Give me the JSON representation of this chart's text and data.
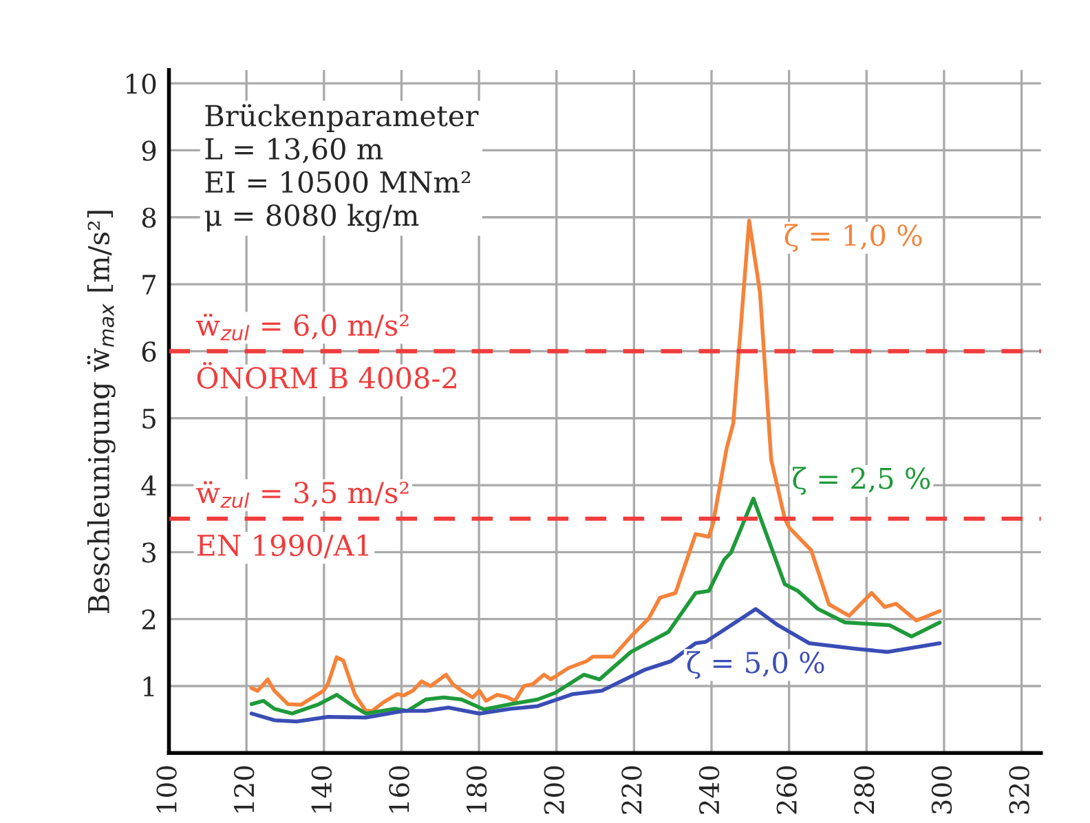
{
  "chart_data": {
    "type": "line",
    "ylabel": "Beschleunigung ẅ$_{max}$ [m/s²]",
    "xlim": [
      100,
      325
    ],
    "ylim": [
      0,
      10.2
    ],
    "xticks": [
      100,
      120,
      140,
      160,
      180,
      200,
      220,
      240,
      260,
      280,
      300,
      320
    ],
    "yticks": [
      1,
      2,
      3,
      4,
      5,
      6,
      7,
      8,
      9,
      10
    ],
    "grid": true,
    "line_style": "solid",
    "annotations": [
      "Brückenparameter\nL = 13,60 m\nEI = 10500 MNm²\nμ = 8080 kg/m"
    ],
    "ref_lines": [
      {
        "axis": "y",
        "value": 6.0,
        "label": "ẅ$_{zul}$ = 6,0 m/s²\nÖNORM B 4008-2",
        "color": "#f03c3c",
        "line_style": "dashed"
      },
      {
        "axis": "y",
        "value": 3.5,
        "label": "ẅ$_{zul}$ = 3,5 m/s²\nEN 1990/A1",
        "color": "#f03c3c",
        "line_style": "dashed"
      }
    ],
    "series": [
      {
        "name": "ζ = 1,0 %",
        "color": "#f5833a",
        "x": [
          121.3,
          122.9,
          125.5,
          127.2,
          130.7,
          134,
          139.9,
          141,
          143.3,
          145,
          148,
          150.8,
          152.5,
          155.4,
          158.9,
          160.6,
          162.9,
          165.2,
          167.5,
          171.5,
          173.2,
          175.5,
          178.4,
          180.1,
          181.8,
          184.7,
          187,
          189.3,
          191.6,
          193.9,
          196.8,
          198.5,
          203.1,
          207.7,
          209.4,
          214.6,
          219.2,
          223.8,
          226.7,
          230.7,
          235.9,
          239.3,
          240.4,
          243.9,
          245.6,
          249.7,
          252.5,
          255.4,
          258.9,
          260,
          264,
          265.7,
          270.3,
          275.5,
          281.3,
          284.7,
          287.6,
          292.8,
          295.1,
          298.9
        ],
        "values": [
          0.97,
          0.93,
          1.1,
          0.93,
          0.73,
          0.72,
          0.93,
          1.03,
          1.43,
          1.38,
          0.87,
          0.63,
          0.63,
          0.76,
          0.88,
          0.86,
          0.93,
          1.07,
          1.0,
          1.17,
          1.03,
          0.93,
          0.83,
          0.93,
          0.78,
          0.87,
          0.84,
          0.78,
          1.0,
          1.03,
          1.17,
          1.1,
          1.27,
          1.37,
          1.44,
          1.44,
          1.74,
          2.01,
          2.32,
          2.39,
          3.27,
          3.23,
          3.43,
          4.55,
          4.92,
          7.95,
          6.88,
          4.38,
          3.5,
          3.37,
          3.13,
          3.03,
          2.22,
          2.05,
          2.39,
          2.18,
          2.23,
          1.98,
          2.03,
          2.12
        ]
      },
      {
        "name": "ζ = 2,5 %",
        "color": "#1f9a3a",
        "x": [
          121.3,
          124.4,
          127.2,
          131.8,
          138.7,
          143.3,
          146.8,
          150.8,
          158.3,
          161.5,
          166.3,
          170.9,
          175.5,
          181.3,
          188.2,
          195.1,
          199.7,
          207.1,
          211.1,
          219.2,
          228.9,
          235.9,
          239.3,
          243.3,
          245,
          250.8,
          258.9,
          262.3,
          267.5,
          274.4,
          285.9,
          291.6,
          298.9
        ],
        "values": [
          0.73,
          0.78,
          0.66,
          0.59,
          0.73,
          0.87,
          0.73,
          0.59,
          0.66,
          0.63,
          0.8,
          0.83,
          0.8,
          0.65,
          0.73,
          0.8,
          0.9,
          1.17,
          1.1,
          1.51,
          1.81,
          2.39,
          2.42,
          2.89,
          2.99,
          3.8,
          2.52,
          2.42,
          2.15,
          1.95,
          1.91,
          1.74,
          1.95
        ]
      },
      {
        "name": "ζ = 5,0 %",
        "color": "#3a4db5",
        "x": [
          121.3,
          127.2,
          133,
          141,
          150.8,
          160.6,
          166.3,
          172.1,
          180.1,
          188.2,
          195.1,
          204.2,
          211.7,
          222.6,
          229.5,
          235.9,
          238.5,
          251.4,
          257.1,
          265.2,
          276.7,
          285.3,
          298.9
        ],
        "values": [
          0.59,
          0.49,
          0.47,
          0.54,
          0.53,
          0.63,
          0.63,
          0.68,
          0.59,
          0.66,
          0.7,
          0.88,
          0.93,
          1.24,
          1.37,
          1.64,
          1.66,
          2.15,
          1.91,
          1.64,
          1.56,
          1.51,
          1.64
        ]
      }
    ]
  }
}
